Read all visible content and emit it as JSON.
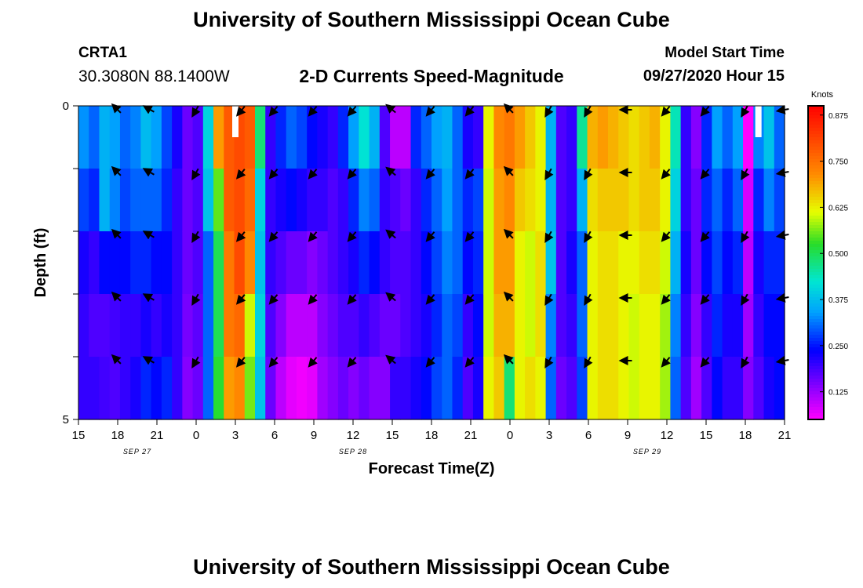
{
  "header": {
    "title": "University of Southern Mississippi Ocean Cube",
    "footer_title": "University of Southern Mississippi Ocean Cube",
    "station": "CRTA1",
    "coords": "30.3080N 88.1400W",
    "chart_title": "2-D Currents Speed-Magnitude",
    "model_label": "Model Start Time",
    "model_time": "09/27/2020 Hour 15"
  },
  "chart_data": {
    "type": "heatmap",
    "title": "2-D Currents Speed-Magnitude",
    "xlabel": "Forecast Time(Z)",
    "ylabel": "Depth (ft)",
    "ylim": [
      0,
      5
    ],
    "xlim_hours": [
      0,
      54
    ],
    "x_tick_labels": [
      "15",
      "18",
      "21",
      "0",
      "3",
      "6",
      "9",
      "12",
      "15",
      "18",
      "21",
      "0",
      "3",
      "6",
      "9",
      "12",
      "15",
      "18",
      "21"
    ],
    "y_tick_labels": [
      "0",
      "",
      "",
      "",
      "",
      "5"
    ],
    "date_labels": [
      {
        "label": "SEP 27",
        "hour": 4.5
      },
      {
        "label": "SEP 28",
        "hour": 21
      },
      {
        "label": "SEP 29",
        "hour": 43.5
      }
    ],
    "colorbar": {
      "unit": "Knots",
      "min": 0.05,
      "max": 0.9,
      "tick_values": [
        0.875,
        0.75,
        0.625,
        0.5,
        0.375,
        0.25,
        0.125
      ],
      "tick_labels": [
        "0.875",
        "0.750",
        "0.625",
        "0.500",
        "0.375",
        "0.250",
        "0.125"
      ]
    },
    "depth_layers": 5,
    "speed_columns": [
      [
        0.33,
        0.28,
        0.22,
        0.2,
        0.2
      ],
      [
        0.3,
        0.26,
        0.2,
        0.18,
        0.2
      ],
      [
        0.36,
        0.36,
        0.24,
        0.18,
        0.19
      ],
      [
        0.34,
        0.32,
        0.24,
        0.19,
        0.18
      ],
      [
        0.3,
        0.28,
        0.24,
        0.2,
        0.2
      ],
      [
        0.32,
        0.3,
        0.26,
        0.2,
        0.22
      ],
      [
        0.37,
        0.3,
        0.26,
        0.22,
        0.26
      ],
      [
        0.34,
        0.3,
        0.24,
        0.2,
        0.24
      ],
      [
        0.28,
        0.26,
        0.24,
        0.22,
        0.26
      ],
      [
        0.22,
        0.2,
        0.2,
        0.2,
        0.2
      ],
      [
        0.16,
        0.16,
        0.16,
        0.15,
        0.14
      ],
      [
        0.18,
        0.18,
        0.18,
        0.17,
        0.16
      ],
      [
        0.4,
        0.38,
        0.3,
        0.3,
        0.3
      ],
      [
        0.7,
        0.55,
        0.5,
        0.5,
        0.52
      ],
      [
        0.78,
        0.78,
        0.74,
        0.74,
        0.7
      ],
      [
        0.8,
        0.8,
        0.8,
        0.76,
        0.72
      ],
      [
        0.78,
        0.76,
        0.72,
        0.6,
        0.56
      ],
      [
        0.48,
        0.4,
        0.38,
        0.4,
        0.38
      ],
      [
        0.2,
        0.2,
        0.2,
        0.18,
        0.16
      ],
      [
        0.26,
        0.22,
        0.18,
        0.14,
        0.1
      ],
      [
        0.3,
        0.24,
        0.16,
        0.1,
        0.07
      ],
      [
        0.28,
        0.22,
        0.16,
        0.1,
        0.06
      ],
      [
        0.24,
        0.2,
        0.14,
        0.1,
        0.07
      ],
      [
        0.22,
        0.2,
        0.16,
        0.14,
        0.12
      ],
      [
        0.2,
        0.18,
        0.18,
        0.16,
        0.14
      ],
      [
        0.26,
        0.2,
        0.2,
        0.18,
        0.16
      ],
      [
        0.34,
        0.26,
        0.22,
        0.18,
        0.14
      ],
      [
        0.42,
        0.32,
        0.26,
        0.2,
        0.16
      ],
      [
        0.36,
        0.3,
        0.24,
        0.18,
        0.14
      ],
      [
        0.18,
        0.2,
        0.2,
        0.16,
        0.14
      ],
      [
        0.1,
        0.18,
        0.18,
        0.16,
        0.2
      ],
      [
        0.1,
        0.16,
        0.18,
        0.18,
        0.2
      ],
      [
        0.26,
        0.2,
        0.2,
        0.2,
        0.22
      ],
      [
        0.3,
        0.26,
        0.24,
        0.22,
        0.24
      ],
      [
        0.34,
        0.3,
        0.28,
        0.26,
        0.28
      ],
      [
        0.36,
        0.34,
        0.32,
        0.3,
        0.3
      ],
      [
        0.3,
        0.3,
        0.3,
        0.28,
        0.26
      ],
      [
        0.22,
        0.26,
        0.24,
        0.2,
        0.18
      ],
      [
        0.2,
        0.28,
        0.26,
        0.24,
        0.22
      ],
      [
        0.62,
        0.6,
        0.6,
        0.6,
        0.62
      ],
      [
        0.72,
        0.7,
        0.7,
        0.68,
        0.66
      ],
      [
        0.74,
        0.72,
        0.7,
        0.68,
        0.48
      ],
      [
        0.7,
        0.66,
        0.62,
        0.62,
        0.62
      ],
      [
        0.66,
        0.64,
        0.6,
        0.6,
        0.64
      ],
      [
        0.62,
        0.62,
        0.64,
        0.64,
        0.62
      ],
      [
        0.36,
        0.36,
        0.38,
        0.32,
        0.3
      ],
      [
        0.18,
        0.18,
        0.18,
        0.18,
        0.16
      ],
      [
        0.2,
        0.2,
        0.22,
        0.2,
        0.18
      ],
      [
        0.46,
        0.36,
        0.3,
        0.3,
        0.28
      ],
      [
        0.68,
        0.64,
        0.62,
        0.62,
        0.62
      ],
      [
        0.7,
        0.66,
        0.64,
        0.64,
        0.64
      ],
      [
        0.68,
        0.66,
        0.64,
        0.64,
        0.64
      ],
      [
        0.66,
        0.66,
        0.62,
        0.62,
        0.62
      ],
      [
        0.64,
        0.64,
        0.62,
        0.6,
        0.6
      ],
      [
        0.66,
        0.66,
        0.64,
        0.62,
        0.62
      ],
      [
        0.68,
        0.66,
        0.64,
        0.62,
        0.62
      ],
      [
        0.62,
        0.62,
        0.6,
        0.58,
        0.58
      ],
      [
        0.44,
        0.4,
        0.36,
        0.32,
        0.3
      ],
      [
        0.2,
        0.2,
        0.22,
        0.2,
        0.18
      ],
      [
        0.14,
        0.16,
        0.16,
        0.14,
        0.12
      ],
      [
        0.26,
        0.26,
        0.24,
        0.2,
        0.18
      ],
      [
        0.34,
        0.3,
        0.28,
        0.26,
        0.24
      ],
      [
        0.3,
        0.26,
        0.24,
        0.22,
        0.2
      ],
      [
        0.34,
        0.3,
        0.26,
        0.22,
        0.2
      ],
      [
        0.02,
        0.08,
        0.1,
        0.12,
        0.14
      ],
      [
        0.32,
        0.26,
        0.22,
        0.2,
        0.18
      ],
      [
        0.38,
        0.32,
        0.26,
        0.24,
        0.22
      ],
      [
        0.3,
        0.28,
        0.26,
        0.24,
        0.24
      ]
    ],
    "gap_cells": [
      {
        "hour": 12,
        "layer": 0
      },
      {
        "hour": 52,
        "layer": 0
      }
    ],
    "vector_hours": [
      3,
      5.5,
      9,
      12.5,
      15,
      18,
      21,
      24,
      27,
      30,
      33,
      36,
      39,
      42,
      45,
      48,
      51,
      54
    ],
    "vector_directions_deg": [
      225,
      210,
      120,
      130,
      130,
      130,
      130,
      220,
      130,
      130,
      225,
      120,
      120,
      180,
      130,
      130,
      120,
      170
    ]
  }
}
